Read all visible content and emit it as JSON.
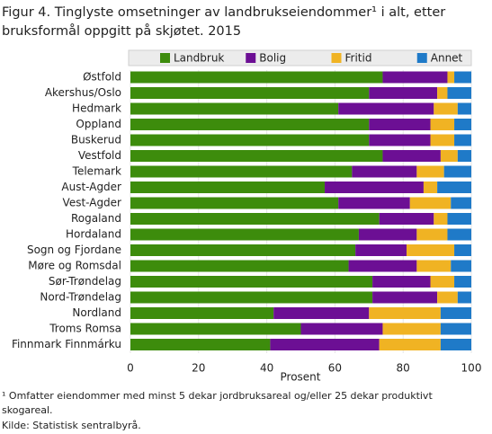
{
  "chart_data": {
    "type": "stacked-bar-horizontal",
    "title": [
      "Figur 4. Tinglyste omsetninger av landbrukseiendommer¹ i alt, etter",
      "bruksformål oppgitt på skjøtet. 2015"
    ],
    "xlabel": "Prosent",
    "categories": [
      "Østfold",
      "Akershus/Oslo",
      "Hedmark",
      "Oppland",
      "Buskerud",
      "Vestfold",
      "Telemark",
      "Aust-Agder",
      "Vest-Agder",
      "Rogaland",
      "Hordaland",
      "Sogn og Fjordane",
      "Møre og Romsdal",
      "Sør-Trøndelag",
      "Nord-Trøndelag",
      "Nordland",
      "Troms Romsa",
      "Finnmark Finnmárku"
    ],
    "series": [
      {
        "name": "Landbruk",
        "color": "#3d8c0c",
        "values": [
          74,
          70,
          61,
          70,
          70,
          74,
          65,
          57,
          61,
          73,
          67,
          66,
          64,
          71,
          71,
          42,
          50,
          41
        ]
      },
      {
        "name": "Bolig",
        "color": "#6c0f94",
        "values": [
          19,
          20,
          28,
          18,
          18,
          17,
          19,
          29,
          21,
          16,
          17,
          15,
          20,
          17,
          19,
          28,
          24,
          32
        ]
      },
      {
        "name": "Fritid",
        "color": "#f0b323",
        "values": [
          2,
          3,
          7,
          7,
          7,
          5,
          8,
          4,
          12,
          4,
          9,
          14,
          10,
          7,
          6,
          21,
          17,
          18
        ]
      },
      {
        "name": "Annet",
        "color": "#1f7ac8",
        "values": [
          5,
          7,
          4,
          5,
          5,
          4,
          8,
          10,
          6,
          7,
          7,
          5,
          6,
          5,
          4,
          9,
          9,
          9
        ]
      }
    ],
    "xlim": [
      0,
      100
    ],
    "xticks": [
      0,
      20,
      40,
      60,
      80,
      100
    ],
    "grid": true,
    "legend": "top",
    "footnotes": [
      "¹ Omfatter eiendommer med minst 5 dekar jordbruksareal og/eller 25 dekar produktivt",
      "skogareal.",
      "Kilde: Statistisk sentralbyrå."
    ]
  }
}
